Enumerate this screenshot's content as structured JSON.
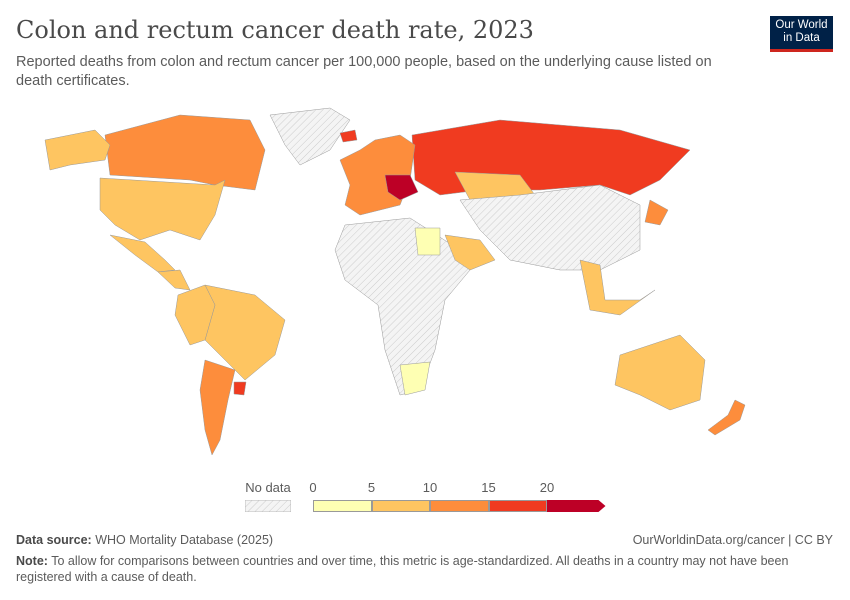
{
  "title": "Colon and rectum cancer death rate, 2023",
  "subtitle": "Reported deaths from colon and rectum cancer per 100,000 people, based on the underlying cause listed on death certificates.",
  "logo": {
    "line1": "Our World",
    "line2": "in Data"
  },
  "legend": {
    "no_data_label": "No data",
    "ticks": [
      "0",
      "5",
      "10",
      "15",
      "20"
    ],
    "bins": [
      {
        "range": [
          0,
          5
        ],
        "color": "#feffb3"
      },
      {
        "range": [
          5,
          10
        ],
        "color": "#fec561"
      },
      {
        "range": [
          10,
          15
        ],
        "color": "#fd8d3c"
      },
      {
        "range": [
          15,
          20
        ],
        "color": "#f03b20"
      },
      {
        "range": [
          20,
          null
        ],
        "color": "#bd0026"
      }
    ],
    "no_data_color": "#eeeeee"
  },
  "regions": [
    {
      "name": "Canada",
      "bin": 2
    },
    {
      "name": "United States",
      "bin": 1
    },
    {
      "name": "Alaska",
      "bin": 1
    },
    {
      "name": "Mexico",
      "bin": 1
    },
    {
      "name": "Central America",
      "bin": 1
    },
    {
      "name": "Brazil",
      "bin": 1
    },
    {
      "name": "Colombia/Peru",
      "bin": 1
    },
    {
      "name": "Argentina",
      "bin": 2
    },
    {
      "name": "Uruguay",
      "bin": 3
    },
    {
      "name": "Russia",
      "bin": 3
    },
    {
      "name": "Kazakhstan",
      "bin": 1
    },
    {
      "name": "Europe",
      "bin": 2
    },
    {
      "name": "Central Europe",
      "bin": 4
    },
    {
      "name": "Africa",
      "bin": null
    },
    {
      "name": "Egypt",
      "bin": 0
    },
    {
      "name": "South Africa",
      "bin": 0
    },
    {
      "name": "Saudi Arabia",
      "bin": 1
    },
    {
      "name": "China/Asia",
      "bin": null
    },
    {
      "name": "Japan",
      "bin": 2
    },
    {
      "name": "Southeast Asia",
      "bin": 1
    },
    {
      "name": "Australia",
      "bin": 1
    },
    {
      "name": "New Zealand",
      "bin": 2
    },
    {
      "name": "Greenland",
      "bin": null
    },
    {
      "name": "Iceland",
      "bin": 3
    }
  ],
  "footer": {
    "source_label": "Data source:",
    "source": "WHO Mortality Database (2025)",
    "url": "OurWorldinData.org/cancer | CC BY",
    "note_label": "Note:",
    "note": "To allow for comparisons between countries and over time, this metric is age-standardized. All deaths in a country may not have been registered with a cause of death."
  }
}
